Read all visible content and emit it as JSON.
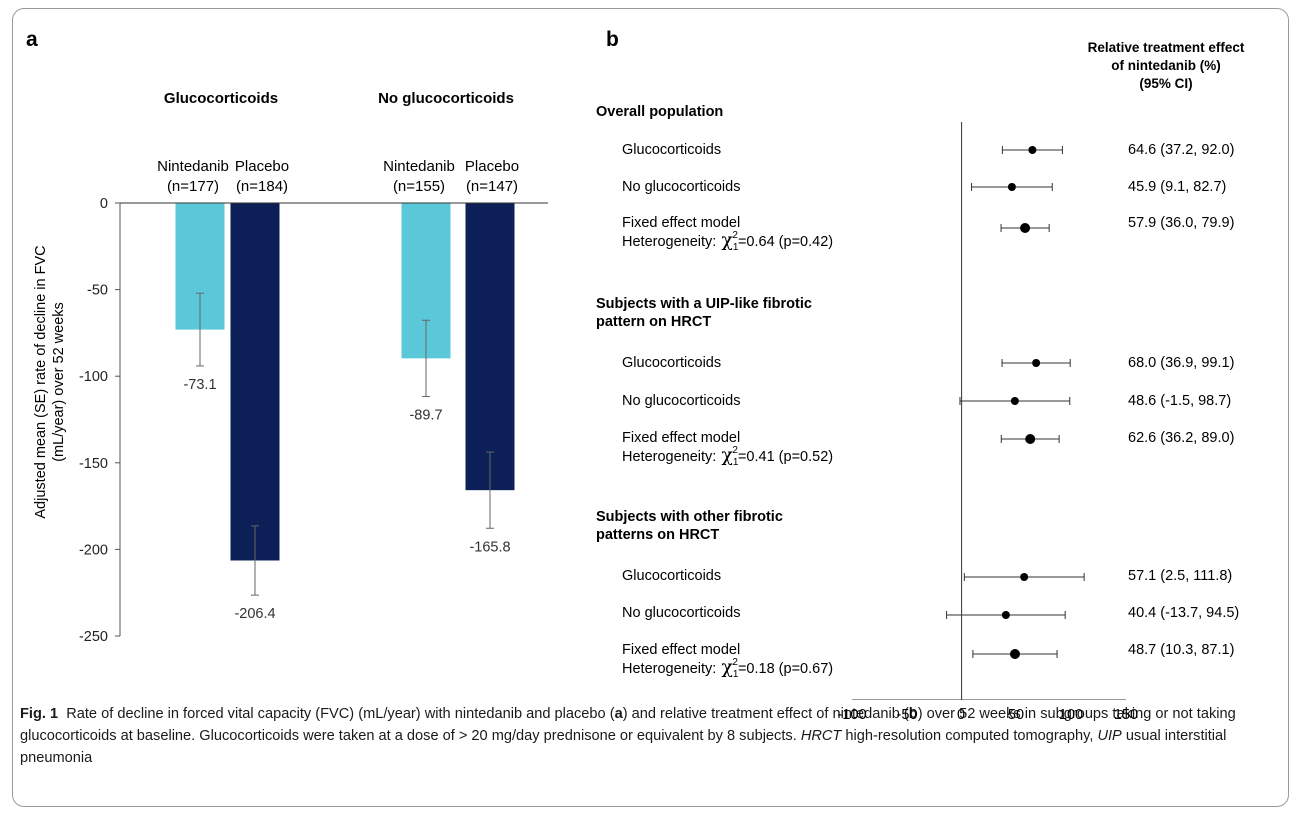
{
  "panel_a": {
    "label": "a",
    "groups": [
      "Glucocorticoids",
      "No glucocorticoids"
    ],
    "bar_labels": [
      [
        "Nintedanib",
        "(n=177)"
      ],
      [
        "Placebo",
        "(n=184)"
      ],
      [
        "Nintedanib",
        "(n=155)"
      ],
      [
        "Placebo",
        "(n=147)"
      ]
    ],
    "ylabel_lines": [
      "Adjusted mean (SE) rate of decline in FVC",
      "(mL/year) over 52 weeks"
    ],
    "colors": {
      "nintedanib": "#5bc8d9",
      "placebo": "#0c1f56"
    }
  },
  "panel_b": {
    "label": "b",
    "header_lines": [
      "Relative treatment effect",
      "of nintedanib (%)",
      "(95% CI)"
    ],
    "sections": [
      {
        "title_lines": [
          "Overall population"
        ],
        "rows": [
          {
            "label": "Glucocorticoids",
            "ci_text": "64.6 (37.2, 92.0)"
          },
          {
            "label": "No glucocorticoids",
            "ci_text": "45.9 (9.1, 82.7)"
          },
          {
            "label": "Fixed effect model",
            "het_prefix": "Heterogeneity:",
            "het_stat": "=0.64 (p=0.42)",
            "ci_text": "57.9 (36.0, 79.9)"
          }
        ]
      },
      {
        "title_lines": [
          "Subjects with a UIP-like fibrotic",
          "pattern on HRCT"
        ],
        "rows": [
          {
            "label": "Glucocorticoids",
            "ci_text": "68.0 (36.9, 99.1)"
          },
          {
            "label": "No glucocorticoids",
            "ci_text": "48.6 (-1.5, 98.7)"
          },
          {
            "label": "Fixed effect model",
            "het_prefix": "Heterogeneity:",
            "het_stat": "=0.41 (p=0.52)",
            "ci_text": "62.6 (36.2, 89.0)"
          }
        ]
      },
      {
        "title_lines": [
          "Subjects with other fibrotic",
          "patterns on HRCT"
        ],
        "rows": [
          {
            "label": "Glucocorticoids",
            "ci_text": "57.1 (2.5, 111.8)"
          },
          {
            "label": "No glucocorticoids",
            "ci_text": "40.4 (-13.7, 94.5)"
          },
          {
            "label": "Fixed effect model",
            "het_prefix": "Heterogeneity:",
            "het_stat": "=0.18 (p=0.67)",
            "ci_text": "48.7 (10.3, 87.1)"
          }
        ]
      }
    ]
  },
  "caption": {
    "fig_label": "Fig. 1",
    "part1": "Rate of decline in forced vital capacity (FVC) (mL/year) with nintedanib and placebo (",
    "ref_a": "a",
    "part2": ") and relative treatment effect of nintedanib (",
    "ref_b": "b",
    "part3": ") over 52 weeks in subgroups taking or not taking glucocorticoids at baseline. Glucocorticoids were taken at a dose of > 20 mg/day prednisone or equivalent by 8 subjects. ",
    "abbr1": "HRCT",
    "def1": " high-resolution computed tomography, ",
    "abbr2": "UIP",
    "def2": " usual interstitial pneumonia"
  },
  "chart_data": [
    {
      "type": "bar",
      "categories": [
        "Glucocorticoids",
        "No glucocorticoids"
      ],
      "series": [
        {
          "name": "Nintedanib",
          "values": [
            -73.1,
            -89.7
          ],
          "se": [
            21,
            22
          ]
        },
        {
          "name": "Placebo",
          "values": [
            -206.4,
            -165.8
          ],
          "se": [
            20,
            22
          ]
        }
      ],
      "data_labels": [
        "-73.1",
        "-206.4",
        "-89.7",
        "-165.8"
      ],
      "ylim": [
        -250,
        0
      ],
      "yticks": [
        0,
        -50,
        -100,
        -150,
        -200,
        -250
      ],
      "ytick_labels": [
        "0",
        "-50",
        "-100",
        "-150",
        "-200",
        "-250"
      ],
      "grid": false
    },
    {
      "type": "scatter",
      "estimates": [
        {
          "est": 64.6,
          "low": 37.2,
          "high": 92.0,
          "pooled": false
        },
        {
          "est": 45.9,
          "low": 9.1,
          "high": 82.7,
          "pooled": false
        },
        {
          "est": 57.9,
          "low": 36.0,
          "high": 79.9,
          "pooled": true
        },
        {
          "est": 68.0,
          "low": 36.9,
          "high": 99.1,
          "pooled": false
        },
        {
          "est": 48.6,
          "low": -1.5,
          "high": 98.7,
          "pooled": false
        },
        {
          "est": 62.6,
          "low": 36.2,
          "high": 89.0,
          "pooled": true
        },
        {
          "est": 57.1,
          "low": 2.5,
          "high": 111.8,
          "pooled": false
        },
        {
          "est": 40.4,
          "low": -13.7,
          "high": 94.5,
          "pooled": false
        },
        {
          "est": 48.7,
          "low": 10.3,
          "high": 87.1,
          "pooled": true
        }
      ],
      "xlim": [
        -100,
        150
      ],
      "xticks": [
        -100,
        -50,
        0,
        50,
        100,
        150
      ],
      "xtick_labels": [
        "-100",
        "-50",
        "0",
        "50",
        "100",
        "150"
      ],
      "reference_line": 0
    }
  ]
}
